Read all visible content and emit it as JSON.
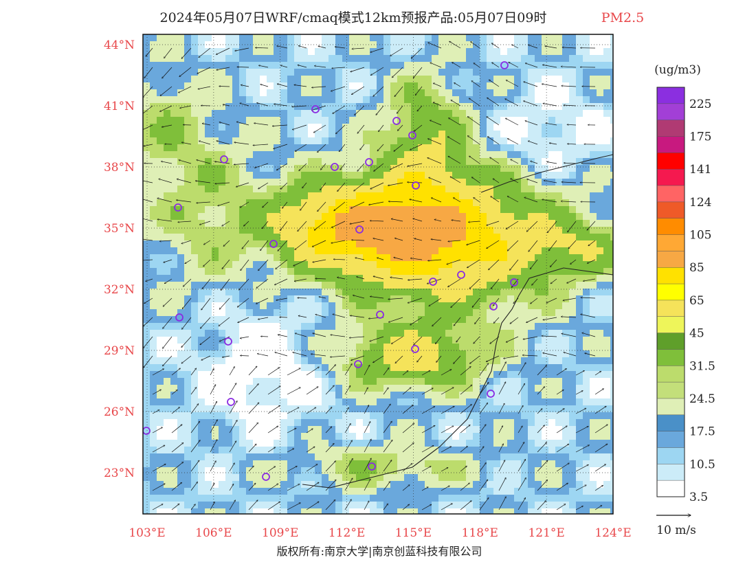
{
  "title": "2024年05月07日WRF/cmaq模式12km预报产品:05月07日09时",
  "pollutant": "PM2.5",
  "colorbar": {
    "unit": "(ug/m3)",
    "colors": [
      "#8b2fe0",
      "#a23fd6",
      "#b03a73",
      "#c8197f",
      "#ff0000",
      "#f5194f",
      "#ff6464",
      "#ef5a28",
      "#ff8c00",
      "#ffa834",
      "#f7a844",
      "#ffe100",
      "#ffff00",
      "#f5e35a",
      "#eef55a",
      "#5f9f2a",
      "#7fbf3a",
      "#bcdc6c",
      "#c3df7a",
      "#dfefb6",
      "#4a90c8",
      "#6aa8dc",
      "#9dd6f2",
      "#ccecf8",
      "#ffffff"
    ],
    "labels": [
      "225",
      "175",
      "141",
      "124",
      "105",
      "85",
      "65",
      "45",
      "31.5",
      "24.5",
      "17.5",
      "10.5",
      "3.5"
    ]
  },
  "lat_labels": [
    "44°N",
    "41°N",
    "38°N",
    "35°N",
    "32°N",
    "29°N",
    "26°N",
    "23°N"
  ],
  "lon_labels": [
    "103°E",
    "106°E",
    "109°E",
    "112°E",
    "115°E",
    "118°E",
    "121°E",
    "124°E"
  ],
  "wind_legend": "10 m/s",
  "copyright": "版权所有:南京大学|南京创蓝科技有限公司",
  "label_color": "#e8474a",
  "marker_color": "#8a2be2"
}
